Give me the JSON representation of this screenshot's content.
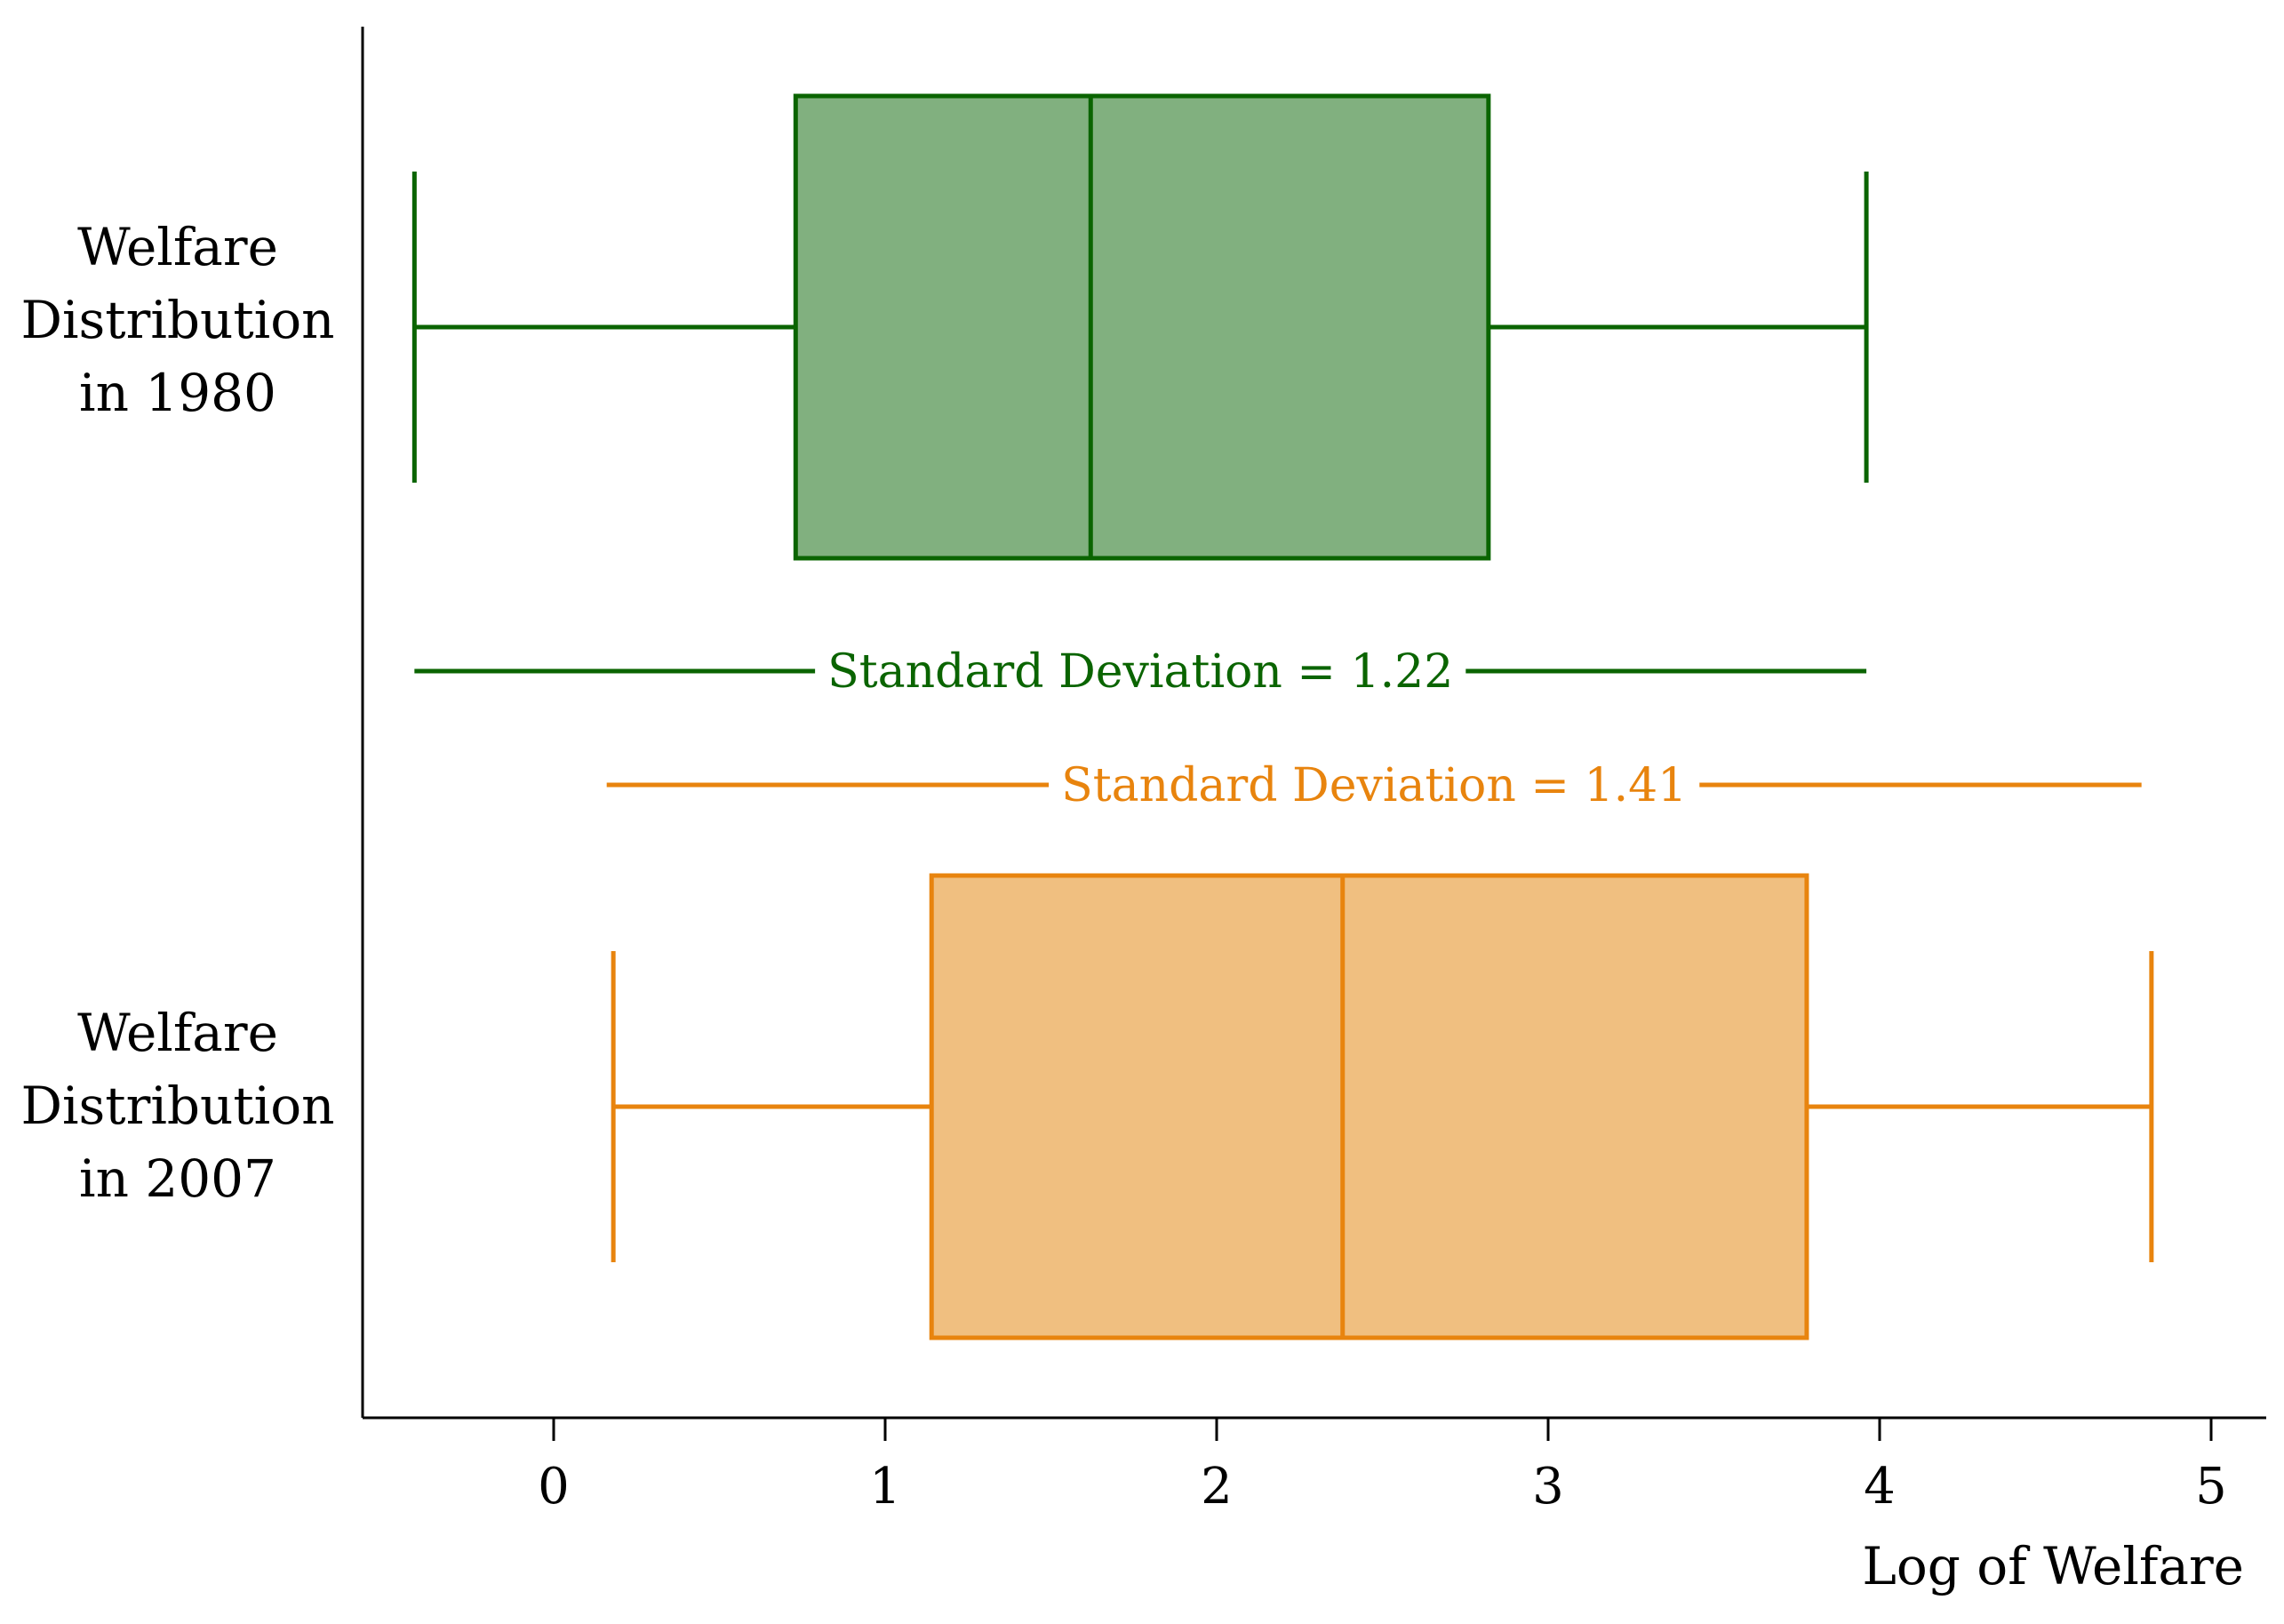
{
  "chart_data": {
    "type": "boxplot",
    "xlabel": "Log of Welfare",
    "xlim": [
      -0.58,
      5.17
    ],
    "xticks": [
      0,
      1,
      2,
      3,
      4,
      5
    ],
    "xtick_labels": [
      "0",
      "1",
      "2",
      "3",
      "4",
      "5"
    ],
    "grid": false,
    "series": [
      {
        "name_lines": [
          "Welfare",
          "Distribution",
          "in 1980"
        ],
        "whisker_low": -0.42,
        "q1": 0.73,
        "median": 1.62,
        "q3": 2.82,
        "whisker_high": 3.96,
        "color": "#0a6400",
        "fill": "#81b07f",
        "sd_label": "Standard Deviation = 1.22",
        "sd_range": [
          -0.42,
          3.96
        ]
      },
      {
        "name_lines": [
          "Welfare",
          "Distribution",
          "in 2007"
        ],
        "whisker_low": 0.18,
        "q1": 1.14,
        "median": 2.38,
        "q3": 3.78,
        "whisker_high": 4.82,
        "color": "#e8840e",
        "fill": "#f0bf80",
        "sd_label": "Standard Deviation = 1.41",
        "sd_range": [
          0.16,
          4.79
        ]
      }
    ]
  }
}
